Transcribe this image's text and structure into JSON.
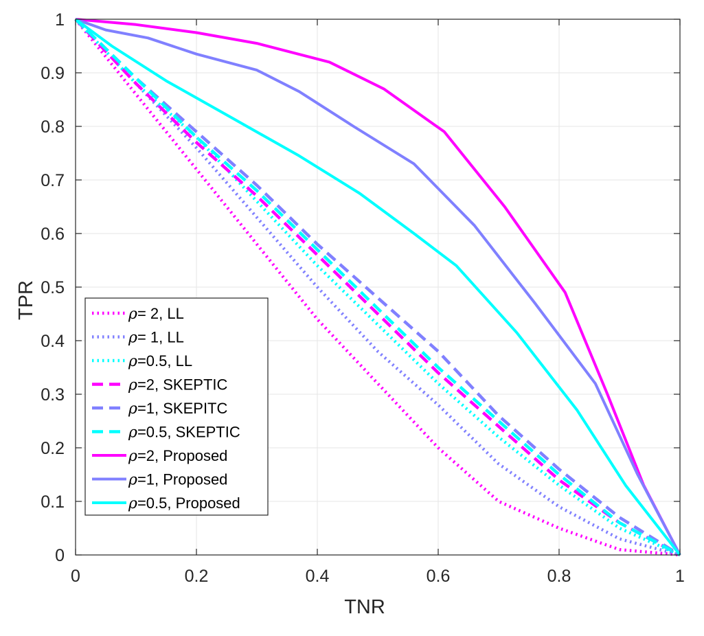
{
  "chart_data": {
    "type": "line",
    "title": "",
    "xlabel": "TNR",
    "ylabel": "TPR",
    "xlim": [
      0,
      1
    ],
    "ylim": [
      0,
      1
    ],
    "xticks": [
      "0",
      "0.2",
      "0.4",
      "0.6",
      "0.8",
      "1"
    ],
    "yticks": [
      "0",
      "0.1",
      "0.2",
      "0.3",
      "0.4",
      "0.5",
      "0.6",
      "0.7",
      "0.8",
      "0.9",
      "1"
    ],
    "grid": true,
    "legend_position": "bottom-left",
    "series": [
      {
        "name": "ρ= 2, LL",
        "rho": "ρ",
        "label_rest": "= 2, LL",
        "color": "#ff00ff",
        "style": "dotted",
        "x": [
          0,
          0.1,
          0.2,
          0.3,
          0.4,
          0.5,
          0.6,
          0.7,
          0.8,
          0.9,
          1
        ],
        "y": [
          1,
          0.86,
          0.72,
          0.58,
          0.44,
          0.32,
          0.2,
          0.1,
          0.05,
          0.01,
          0
        ]
      },
      {
        "name": "ρ= 1, LL",
        "rho": "ρ",
        "label_rest": "= 1, LL",
        "color": "#8080ff",
        "style": "dotted",
        "x": [
          0,
          0.1,
          0.2,
          0.3,
          0.4,
          0.5,
          0.6,
          0.7,
          0.8,
          0.9,
          1
        ],
        "y": [
          1,
          0.88,
          0.76,
          0.63,
          0.5,
          0.38,
          0.28,
          0.17,
          0.09,
          0.03,
          0
        ]
      },
      {
        "name": "ρ=0.5, LL",
        "rho": "ρ",
        "label_rest": "=0.5, LL",
        "color": "#00ffff",
        "style": "dotted",
        "x": [
          0,
          0.1,
          0.2,
          0.3,
          0.4,
          0.5,
          0.6,
          0.7,
          0.8,
          0.9,
          1
        ],
        "y": [
          1,
          0.88,
          0.78,
          0.66,
          0.54,
          0.43,
          0.32,
          0.22,
          0.13,
          0.05,
          0
        ]
      },
      {
        "name": "ρ=2, SKEPTIC",
        "rho": "ρ",
        "label_rest": "=2, SKEPTIC",
        "color": "#ff00ff",
        "style": "dashed",
        "x": [
          0,
          0.1,
          0.2,
          0.3,
          0.4,
          0.5,
          0.6,
          0.7,
          0.8,
          0.9,
          1
        ],
        "y": [
          1,
          0.88,
          0.77,
          0.67,
          0.56,
          0.45,
          0.34,
          0.24,
          0.14,
          0.06,
          0
        ]
      },
      {
        "name": "ρ=1, SKEPITC",
        "rho": "ρ",
        "label_rest": "=1, SKEPITC",
        "color": "#8080ff",
        "style": "dashed",
        "x": [
          0,
          0.1,
          0.2,
          0.3,
          0.4,
          0.5,
          0.6,
          0.7,
          0.8,
          0.9,
          1
        ],
        "y": [
          1,
          0.89,
          0.79,
          0.69,
          0.58,
          0.48,
          0.38,
          0.26,
          0.16,
          0.07,
          0
        ]
      },
      {
        "name": "ρ=0.5, SKEPTIC",
        "rho": "ρ",
        "label_rest": "=0.5, SKEPTIC",
        "color": "#00ffff",
        "style": "dashed",
        "x": [
          0,
          0.1,
          0.2,
          0.3,
          0.4,
          0.5,
          0.6,
          0.7,
          0.8,
          0.9,
          1
        ],
        "y": [
          1,
          0.89,
          0.78,
          0.68,
          0.57,
          0.46,
          0.35,
          0.25,
          0.15,
          0.06,
          0
        ]
      },
      {
        "name": "ρ=2, Proposed",
        "rho": "ρ",
        "label_rest": "=2, Proposed",
        "color": "#ff00ff",
        "style": "solid",
        "x": [
          0,
          0.1,
          0.2,
          0.3,
          0.42,
          0.51,
          0.61,
          0.71,
          0.81,
          0.88,
          0.94,
          1
        ],
        "y": [
          1,
          0.99,
          0.975,
          0.955,
          0.92,
          0.87,
          0.79,
          0.65,
          0.49,
          0.3,
          0.13,
          0
        ]
      },
      {
        "name": "ρ=1, Proposed",
        "rho": "ρ",
        "label_rest": "=1, Proposed",
        "color": "#8080ff",
        "style": "solid",
        "x": [
          0,
          0.05,
          0.12,
          0.2,
          0.3,
          0.37,
          0.46,
          0.56,
          0.66,
          0.76,
          0.86,
          0.93,
          1
        ],
        "y": [
          1,
          0.98,
          0.965,
          0.935,
          0.905,
          0.865,
          0.8,
          0.73,
          0.615,
          0.47,
          0.32,
          0.15,
          0
        ]
      },
      {
        "name": "ρ=0.5, Proposed",
        "rho": "ρ",
        "label_rest": "=0.5, Proposed",
        "color": "#00ffff",
        "style": "solid",
        "x": [
          0,
          0.06,
          0.15,
          0.26,
          0.37,
          0.47,
          0.56,
          0.63,
          0.73,
          0.83,
          0.91,
          1
        ],
        "y": [
          1,
          0.95,
          0.885,
          0.815,
          0.745,
          0.675,
          0.6,
          0.54,
          0.415,
          0.27,
          0.13,
          0
        ]
      }
    ]
  }
}
